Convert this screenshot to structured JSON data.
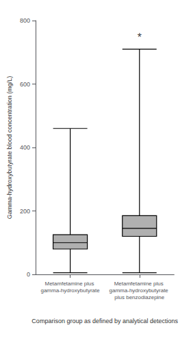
{
  "chart_data": {
    "type": "box",
    "categories": [
      "Metamfetamine plus gamma-hydroxybutyrate",
      "Metamfetamine plus gamma-hydroxybutyrate plus benzodiazepine"
    ],
    "boxes": [
      {
        "whislo": 5,
        "q1": 80,
        "med": 100,
        "q3": 125,
        "whishi": 460
      },
      {
        "whislo": 5,
        "q1": 120,
        "med": 145,
        "q3": 185,
        "whishi": 710
      }
    ],
    "color": "#b0b0b0",
    "xlabel": "Comparison group as defined by analytical detections",
    "ylabel": "Gamma-hydroxybutyrate blood concentration (mg/L)",
    "ylim": [
      0,
      800
    ],
    "yticks": [
      0,
      200,
      400,
      600,
      800
    ],
    "annotations": [
      {
        "text": "*",
        "x": "Metamfetamine plus gamma-hydroxybutyrate plus benzodiazepine",
        "y": 730
      }
    ],
    "grid": false
  }
}
